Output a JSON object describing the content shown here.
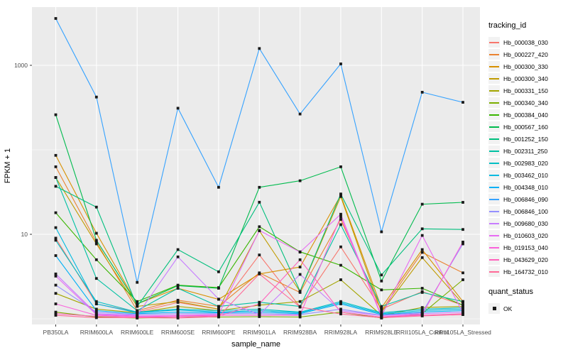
{
  "figure": {
    "x_axis_title": "sample_name",
    "y_axis_title": "FPKM + 1",
    "legend_title": "tracking_id",
    "quant_legend_title": "quant_status",
    "quant_legend_item": "OK",
    "panel_bg": "#EBEBEB",
    "grid_color": "#FFFFFF",
    "point_color": "#1a1a1a"
  },
  "chart_data": {
    "type": "line",
    "title": "",
    "xlabel": "sample_name",
    "ylabel": "FPKM + 1",
    "y_scale": "log10",
    "y_ticks": [
      10,
      1000
    ],
    "y_tick_labels": [
      "10",
      "1000"
    ],
    "y_minor_gridlines": [
      1,
      100
    ],
    "ylim_log10": [
      -0.07,
      3.69
    ],
    "grid": true,
    "legend_position": "right",
    "marker": "black-square",
    "categories": [
      "PB350LA",
      "RRIM600LA",
      "RRIM600LE",
      "RRIM600SE",
      "RRIM600PE",
      "RRIM901LA",
      "RRIM928BA",
      "RRIM928LA",
      "RRIM928LE",
      "RRII105LA_Control",
      "RRII105LA_Stressed"
    ],
    "series": [
      {
        "name": "Hb_000038_030",
        "color": "#F8766D",
        "values": [
          9,
          1.5,
          1.2,
          1.56,
          1.3,
          5.7,
          1.38,
          7.1,
          1.3,
          2.1,
          1.45
        ]
      },
      {
        "name": "Hb_000227_420",
        "color": "#EA8331",
        "values": [
          63,
          8.1,
          1.25,
          1.66,
          1.4,
          3.5,
          2.05,
          15,
          1.25,
          6.1,
          3.5
        ]
      },
      {
        "name": "Hb_000300_330",
        "color": "#D89000",
        "values": [
          86,
          10.3,
          1.5,
          2.3,
          1.7,
          3.4,
          4.1,
          29,
          1.35,
          6.6,
          1.6
        ]
      },
      {
        "name": "Hb_000300_340",
        "color": "#C09B00",
        "values": [
          47,
          7.7,
          1.4,
          1.6,
          1.3,
          11,
          2.1,
          28,
          1.2,
          5.3,
          1.5
        ]
      },
      {
        "name": "Hb_000331_150",
        "color": "#A3A500",
        "values": [
          2.0,
          1.3,
          1.18,
          1.4,
          1.25,
          1.45,
          1.6,
          2.9,
          1.1,
          1.36,
          1.4
        ]
      },
      {
        "name": "Hb_000340_340",
        "color": "#7CAE00",
        "values": [
          1.2,
          1.05,
          1.02,
          1.05,
          1.05,
          1.06,
          1.05,
          1.2,
          1.02,
          1.15,
          2.9
        ]
      },
      {
        "name": "Hb_000384_040",
        "color": "#39B600",
        "values": [
          18,
          5.0,
          1.6,
          2.5,
          2.34,
          12.3,
          6.2,
          4.3,
          2.2,
          2.3,
          1.45
        ]
      },
      {
        "name": "Hb_000567_160",
        "color": "#00BB4E",
        "values": [
          260,
          8.5,
          1.5,
          2.47,
          2.3,
          36,
          43,
          63,
          2.8,
          22.7,
          23.9
        ]
      },
      {
        "name": "Hb_001252_150",
        "color": "#00BF7D",
        "values": [
          37,
          21,
          1.4,
          6.6,
          3.6,
          24,
          2.12,
          30,
          3.3,
          11.6,
          11.4
        ]
      },
      {
        "name": "Hb_002311_250",
        "color": "#00C1A3",
        "values": [
          47,
          3.0,
          1.25,
          2.3,
          1.4,
          1.57,
          1.4,
          13,
          1.4,
          2.05,
          1.6
        ]
      },
      {
        "name": "Hb_002983_020",
        "color": "#00BFC4",
        "values": [
          8.5,
          1.6,
          1.2,
          1.3,
          1.25,
          1.3,
          1.2,
          1.6,
          1.18,
          1.3,
          1.35
        ]
      },
      {
        "name": "Hb_003462_010",
        "color": "#00BAE0",
        "values": [
          12,
          1.5,
          1.18,
          1.27,
          1.2,
          1.25,
          1.18,
          1.55,
          1.15,
          1.25,
          1.3
        ]
      },
      {
        "name": "Hb_004348_010",
        "color": "#00B0F6",
        "values": [
          5.6,
          1.25,
          1.15,
          1.2,
          1.18,
          1.2,
          1.15,
          1.5,
          1.12,
          1.2,
          1.25
        ]
      },
      {
        "name": "Hb_006846_090",
        "color": "#35A2FF",
        "values": [
          3587,
          421,
          2.7,
          311,
          36,
          1582,
          265,
          1040,
          10.7,
          480,
          365
        ]
      },
      {
        "name": "Hb_006846_100",
        "color": "#9590FF",
        "values": [
          2.5,
          1.2,
          1.12,
          1.15,
          1.15,
          1.15,
          1.12,
          1.3,
          1.1,
          1.18,
          7.7
        ]
      },
      {
        "name": "Hb_009680_030",
        "color": "#C77CFF",
        "values": [
          3.4,
          1.15,
          1.1,
          5.4,
          1.71,
          1.12,
          3.35,
          1.25,
          1.09,
          1.15,
          1.2
        ]
      },
      {
        "name": "Hb_010603_020",
        "color": "#E76BF3",
        "values": [
          3.2,
          1.12,
          1.08,
          1.1,
          1.12,
          11.1,
          6.15,
          17.3,
          1.08,
          9.7,
          1.18
        ]
      },
      {
        "name": "Hb_019153_040",
        "color": "#FA62DB",
        "values": [
          1.5,
          1.1,
          1.06,
          1.08,
          1.1,
          1.1,
          1.1,
          16.2,
          1.06,
          1.12,
          8.1
        ]
      },
      {
        "name": "Hb_043629_020",
        "color": "#FF62BC",
        "values": [
          1.15,
          1.07,
          1.05,
          1.05,
          1.08,
          1.5,
          5.0,
          1.2,
          1.05,
          1.1,
          1.15
        ]
      },
      {
        "name": "Hb_164732_010",
        "color": "#FF6A98",
        "values": [
          1.1,
          1.03,
          1.03,
          1.02,
          1.06,
          3.4,
          1.38,
          1.14,
          1.03,
          1.08,
          1.12
        ]
      }
    ],
    "legend": {
      "title": "tracking_id"
    },
    "quant_status": {
      "title": "quant_status",
      "items": [
        "OK"
      ]
    }
  }
}
